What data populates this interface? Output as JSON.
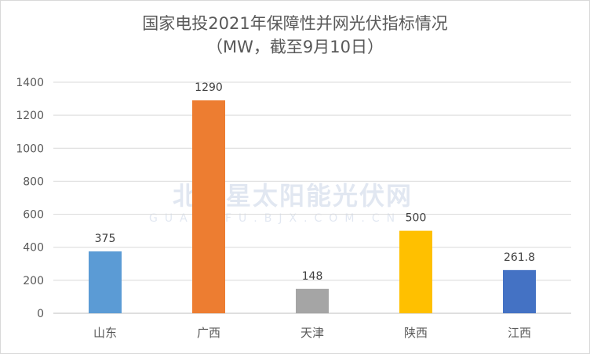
{
  "chart_data": {
    "type": "bar",
    "title": "国家电投2021年保障性并网光伏指标情况",
    "subtitle": "（MW，截至9月10日）",
    "categories": [
      "山东",
      "广西",
      "天津",
      "陕西",
      "江西"
    ],
    "values": [
      375,
      1290,
      148,
      500,
      261.8
    ],
    "value_labels": [
      "375",
      "1290",
      "148",
      "500",
      "261.8"
    ],
    "colors": [
      "#5B9BD5",
      "#ED7D31",
      "#A5A5A5",
      "#FFC000",
      "#4472C4"
    ],
    "ylim": [
      0,
      1400
    ],
    "yticks": [
      0,
      200,
      400,
      600,
      800,
      1000,
      1200,
      1400
    ],
    "grid": true,
    "xlabel": "",
    "ylabel": ""
  },
  "watermark": {
    "cn": "北极星太阳能光伏网",
    "en": "GUANGFU.BJX.COM.CN"
  }
}
